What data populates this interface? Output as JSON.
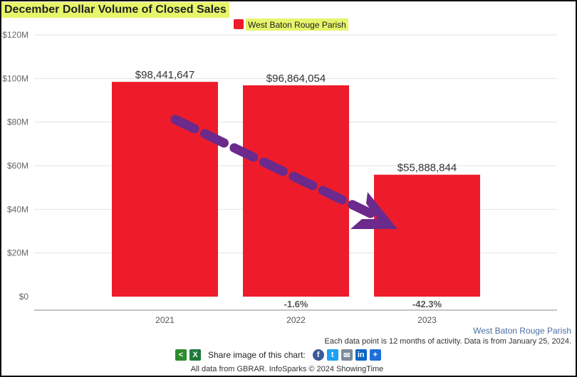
{
  "chart_data": {
    "type": "bar",
    "title": "December Dollar Volume of Closed Sales",
    "legend": {
      "label": "West Baton Rouge Parish",
      "color": "#ee1c2a",
      "placement": "top-center"
    },
    "categories": [
      "2021",
      "2022",
      "2023"
    ],
    "series": [
      {
        "name": "West Baton Rouge Parish",
        "values": [
          98441647,
          96864054,
          55888844
        ],
        "color": "#ee1c2a"
      }
    ],
    "data_labels": [
      "$98,441,647",
      "$96,864,054",
      "$55,888,844"
    ],
    "change_labels": [
      "",
      "-1.6%",
      "-42.3%"
    ],
    "y_ticks": [
      0,
      20000000,
      40000000,
      60000000,
      80000000,
      100000000,
      120000000
    ],
    "y_tick_labels": [
      "$0",
      "$20M",
      "$40M",
      "$60M",
      "$80M",
      "$100M",
      "$120M"
    ],
    "ylim": [
      0,
      120000000
    ],
    "grid": true,
    "annotation": {
      "type": "dashed-arrow",
      "color": "#6b2a8c",
      "from": "2021",
      "to": "2023"
    }
  },
  "footer": {
    "parish_link": "West Baton Rouge Parish",
    "data_note": "Each data point is 12 months of activity. Data is from January 25, 2024.",
    "share_label": "Share image of this chart:",
    "credits": "All data from GBRAR. InfoSparks © 2024 ShowingTime"
  },
  "icons": [
    "share-icon",
    "excel-icon",
    "facebook-icon",
    "twitter-icon",
    "email-icon",
    "linkedin-icon",
    "add-share-icon"
  ]
}
